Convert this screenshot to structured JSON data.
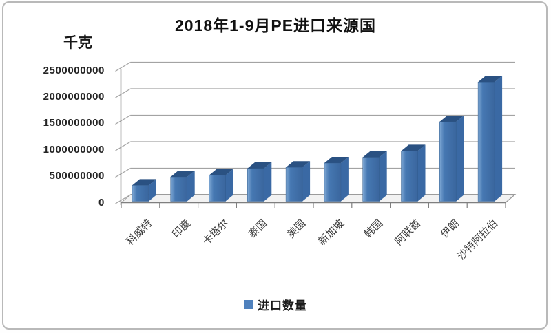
{
  "title": "2018年1-9月PE进口来源国",
  "chart_data": {
    "type": "bar",
    "style": "3d-column",
    "title": "2018年1-9月PE进口来源国",
    "unit_label": "千克",
    "xlabel": "",
    "ylabel": "千克",
    "categories": [
      "科威特",
      "印度",
      "卡塔尔",
      "泰国",
      "美国",
      "新加坡",
      "韩国",
      "阿联酋",
      "伊朗",
      "沙特阿拉伯"
    ],
    "series": [
      {
        "name": "进口数量",
        "values": [
          300000000,
          460000000,
          490000000,
          620000000,
          640000000,
          720000000,
          830000000,
          950000000,
          1500000000,
          2250000000
        ]
      }
    ],
    "yticks": [
      0,
      500000000,
      1000000000,
      1500000000,
      2000000000,
      2500000000
    ],
    "ytick_labels": [
      "0",
      "500000000",
      "1000000000",
      "1500000000",
      "2000000000",
      "2500000000"
    ],
    "ylim": [
      0,
      2500000000
    ],
    "grid": "horizontal",
    "legend": {
      "label": "进口数量",
      "position": "bottom",
      "marker": "square"
    },
    "colors": {
      "bar_front_light": "#7FA8D4",
      "bar_front": "#4678B2",
      "bar_front_dark": "#3A669E",
      "bar_top": "#2A5182",
      "bar_side": "#3A69A4",
      "bar_edge": "#2F5A8C",
      "legend_marker": "#4F81BD",
      "grid_line": "#A3A3A3",
      "axis_line": "#7F7F7F",
      "floor_fill": "#F2F2F2",
      "text": "#242424"
    }
  }
}
